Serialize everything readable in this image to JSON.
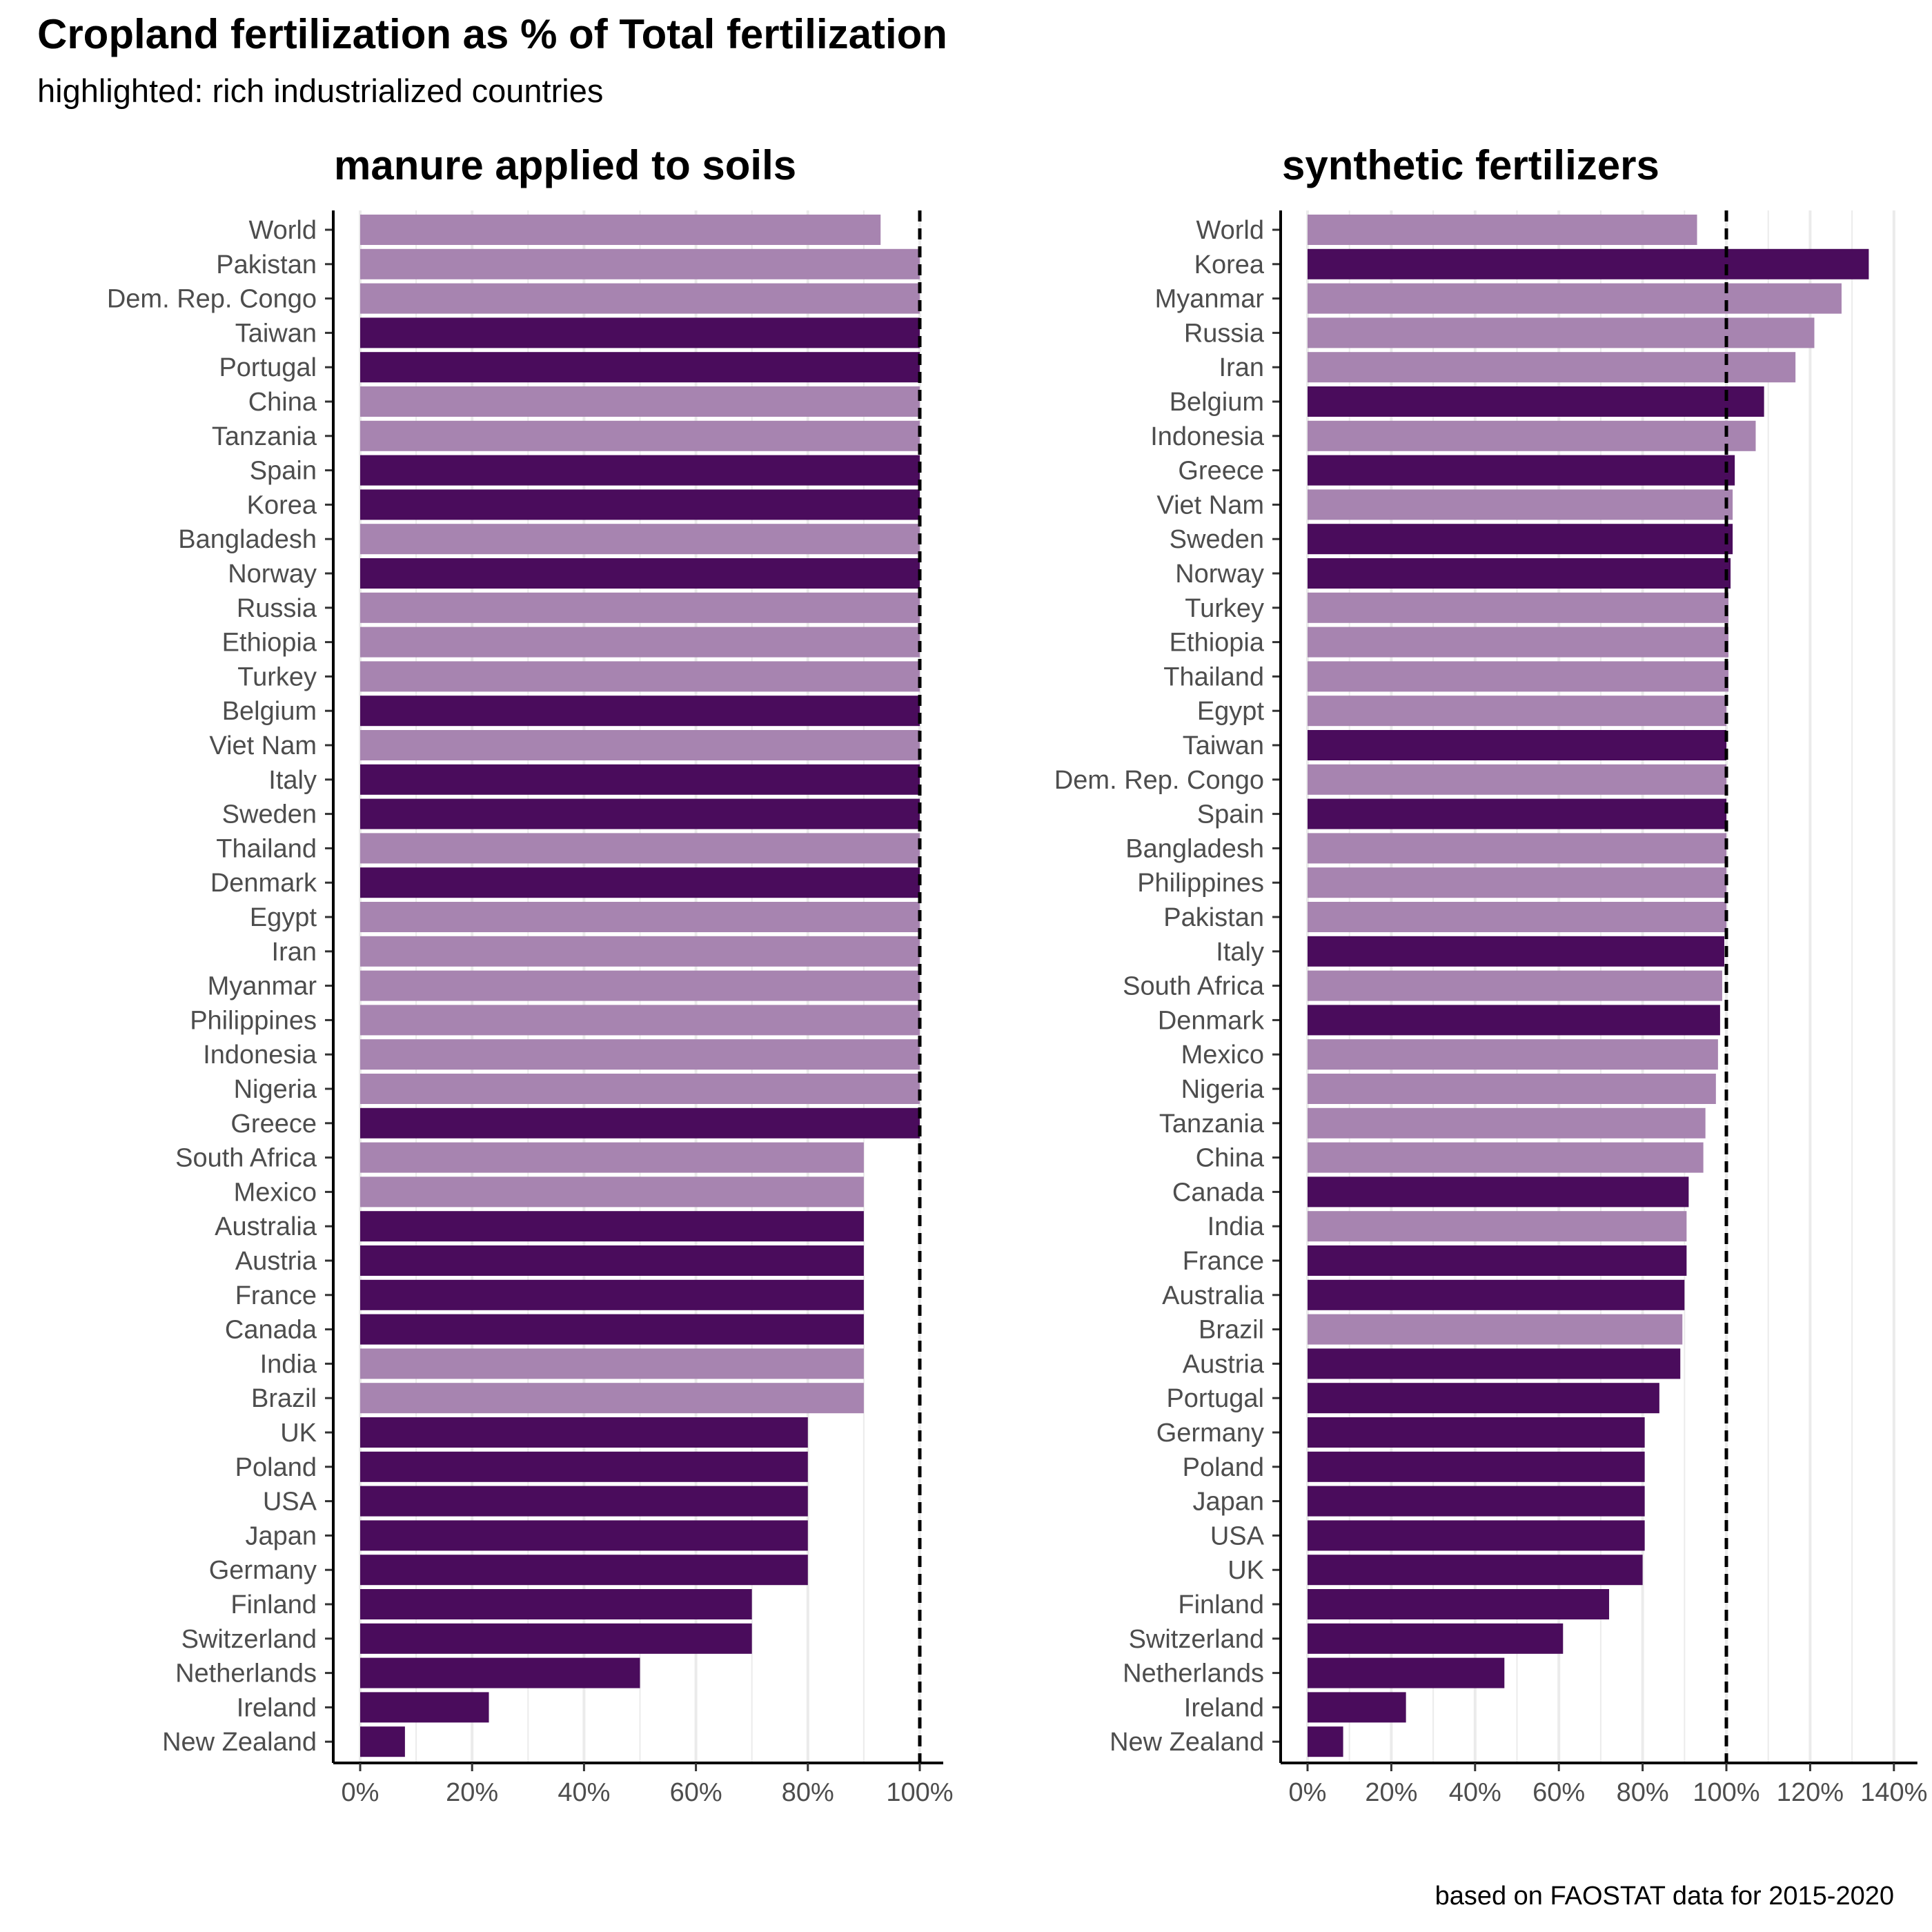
{
  "title": "Cropland fertilization as % of Total fertilization",
  "subtitle": "highlighted: rich industrialized countries",
  "caption": "based on FAOSTAT data for 2015-2020",
  "colors": {
    "highlight": "#4a0c5c",
    "other": "#a784b0",
    "grid": "#ebebeb",
    "reference_line": "#000000"
  },
  "chart_data": [
    {
      "type": "bar",
      "orientation": "horizontal",
      "title": "manure applied to soils",
      "xlim": [
        0,
        100
      ],
      "xticks": [
        "0%",
        "20%",
        "40%",
        "60%",
        "80%",
        "100%"
      ],
      "reference_line": 100,
      "unit": "%",
      "categories": [
        "World",
        "Pakistan",
        "Dem. Rep. Congo",
        "Taiwan",
        "Portugal",
        "China",
        "Tanzania",
        "Spain",
        "Korea",
        "Bangladesh",
        "Norway",
        "Russia",
        "Ethiopia",
        "Turkey",
        "Belgium",
        "Viet Nam",
        "Italy",
        "Sweden",
        "Thailand",
        "Denmark",
        "Egypt",
        "Iran",
        "Myanmar",
        "Philippines",
        "Indonesia",
        "Nigeria",
        "Greece",
        "South Africa",
        "Mexico",
        "Australia",
        "Austria",
        "France",
        "Canada",
        "India",
        "Brazil",
        "UK",
        "Poland",
        "USA",
        "Japan",
        "Germany",
        "Finland",
        "Switzerland",
        "Netherlands",
        "Ireland",
        "New Zealand"
      ],
      "values": [
        93,
        100,
        100,
        100,
        100,
        100,
        100,
        100,
        100,
        100,
        100,
        100,
        100,
        100,
        100,
        100,
        100,
        100,
        100,
        100,
        100,
        100,
        100,
        100,
        100,
        100,
        100,
        90,
        90,
        90,
        90,
        90,
        90,
        90,
        90,
        80,
        80,
        80,
        80,
        80,
        70,
        70,
        50,
        23,
        8
      ],
      "highlighted": [
        false,
        false,
        false,
        true,
        true,
        false,
        false,
        true,
        true,
        false,
        true,
        false,
        false,
        false,
        true,
        false,
        true,
        true,
        false,
        true,
        false,
        false,
        false,
        false,
        false,
        false,
        true,
        false,
        false,
        true,
        true,
        true,
        true,
        false,
        false,
        true,
        true,
        true,
        true,
        true,
        true,
        true,
        true,
        true,
        true
      ]
    },
    {
      "type": "bar",
      "orientation": "horizontal",
      "title": "synthetic fertilizers",
      "xlim": [
        0,
        140
      ],
      "xticks": [
        "0%",
        "20%",
        "40%",
        "60%",
        "80%",
        "100%",
        "120%",
        "140%"
      ],
      "reference_line": 100,
      "unit": "%",
      "categories": [
        "World",
        "Korea",
        "Myanmar",
        "Russia",
        "Iran",
        "Belgium",
        "Indonesia",
        "Greece",
        "Viet Nam",
        "Sweden",
        "Norway",
        "Turkey",
        "Ethiopia",
        "Thailand",
        "Egypt",
        "Taiwan",
        "Dem. Rep. Congo",
        "Spain",
        "Bangladesh",
        "Philippines",
        "Pakistan",
        "Italy",
        "South Africa",
        "Denmark",
        "Mexico",
        "Nigeria",
        "Tanzania",
        "China",
        "Canada",
        "India",
        "France",
        "Australia",
        "Brazil",
        "Austria",
        "Portugal",
        "Germany",
        "Poland",
        "Japan",
        "USA",
        "UK",
        "Finland",
        "Switzerland",
        "Netherlands",
        "Ireland",
        "New Zealand"
      ],
      "values": [
        93,
        134,
        127.5,
        121,
        116.5,
        109,
        107,
        102,
        101.5,
        101.5,
        101,
        100.5,
        100.5,
        100.5,
        100,
        100,
        100,
        100,
        100,
        100,
        100,
        99.5,
        99,
        98.5,
        98,
        97.5,
        95,
        94.5,
        91,
        90.5,
        90.5,
        90,
        89.5,
        89,
        84,
        80.5,
        80.5,
        80.5,
        80.5,
        80,
        72,
        61,
        47,
        23.5,
        8.5
      ],
      "highlighted": [
        false,
        true,
        false,
        false,
        false,
        true,
        false,
        true,
        false,
        true,
        true,
        false,
        false,
        false,
        false,
        true,
        false,
        true,
        false,
        false,
        false,
        true,
        false,
        true,
        false,
        false,
        false,
        false,
        true,
        false,
        true,
        true,
        false,
        true,
        true,
        true,
        true,
        true,
        true,
        true,
        true,
        true,
        true,
        true,
        true
      ]
    }
  ]
}
